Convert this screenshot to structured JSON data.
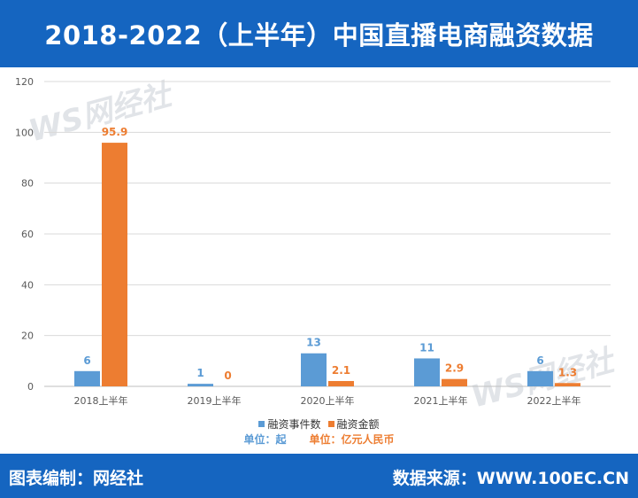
{
  "header": {
    "title": "2018-2022（上半年）中国直播电商融资数据"
  },
  "footer": {
    "left": "图表编制：网经社",
    "right": "数据来源：WWW.100EC.CN"
  },
  "watermark": {
    "logo": "WS网经社",
    "url": "WWW.100EC.CN"
  },
  "legend": {
    "series1": "融资事件数",
    "series2": "融资金额"
  },
  "units": {
    "series1": "单位：起",
    "series2": "单位：亿元人民币"
  },
  "colors": {
    "series1": "#5b9bd5",
    "series2": "#ed7d31",
    "header_bg": "#1565c0",
    "grid": "#d9d9d9"
  },
  "chart_data": {
    "type": "bar",
    "categories": [
      "2018上半年",
      "2019上半年",
      "2020上半年",
      "2021上半年",
      "2022上半年"
    ],
    "series": [
      {
        "name": "融资事件数",
        "values": [
          6,
          1,
          13,
          11,
          6
        ]
      },
      {
        "name": "融资金额",
        "values": [
          95.9,
          0,
          2.1,
          2.9,
          1.3
        ]
      }
    ],
    "ylim": [
      0,
      120
    ],
    "yticks": [
      0,
      20,
      40,
      60,
      80,
      100,
      120
    ],
    "grid": true,
    "legend_position": "bottom",
    "data_labels": [
      [
        "6",
        "1",
        "13",
        "11",
        "6"
      ],
      [
        "95.9",
        "0",
        "2.1",
        "2.9",
        "1.3"
      ]
    ]
  }
}
